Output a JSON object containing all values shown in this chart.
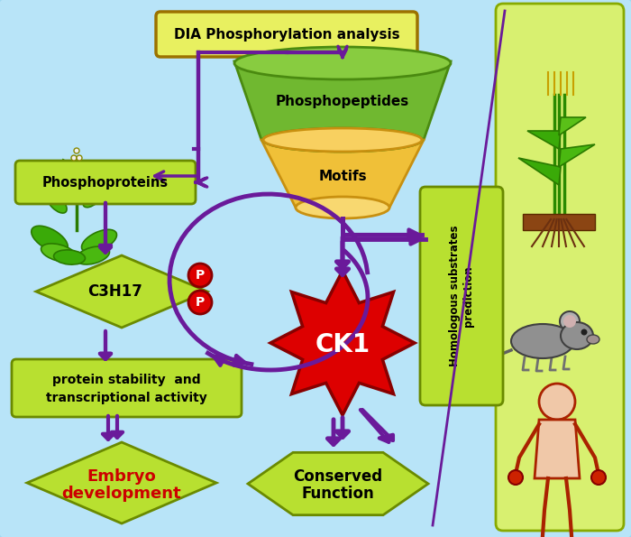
{
  "bg_color": "#8ed4ef",
  "title_box_color": "#e8f060",
  "title_box_border": "#9b7200",
  "title_text": "DIA Phosphorylation analysis",
  "phosphoprot_box": "#b8e030",
  "phosphoprot_text": "Phosphoproteins",
  "phosphopep_text": "Phosphopeptides",
  "motifs_text": "Motifs",
  "funnel_top_color": "#6aba30",
  "funnel_bot_color": "#f0c840",
  "ck1_color": "#dd0000",
  "ck1_text": "CK1",
  "c3h17_diamond_color": "#b8e030",
  "c3h17_text": "C3H17",
  "stability_box_color": "#b8e030",
  "stability_text": "protein stability  and\ntranscriptional activity",
  "embryo_diamond_color": "#b8e030",
  "embryo_text": "Embryo\ndevelopment",
  "conserved_box_color": "#b8e030",
  "conserved_text": "Conserved\nFunction",
  "homologous_box_color": "#b8e030",
  "homologous_text": "Homologous substrates\nprediction",
  "arrow_color": "#6a1a9a",
  "right_panel_color": "#d8f070",
  "p_circle_color": "#dd0000",
  "p_text": "P",
  "dia_box_color": "#e8f060"
}
